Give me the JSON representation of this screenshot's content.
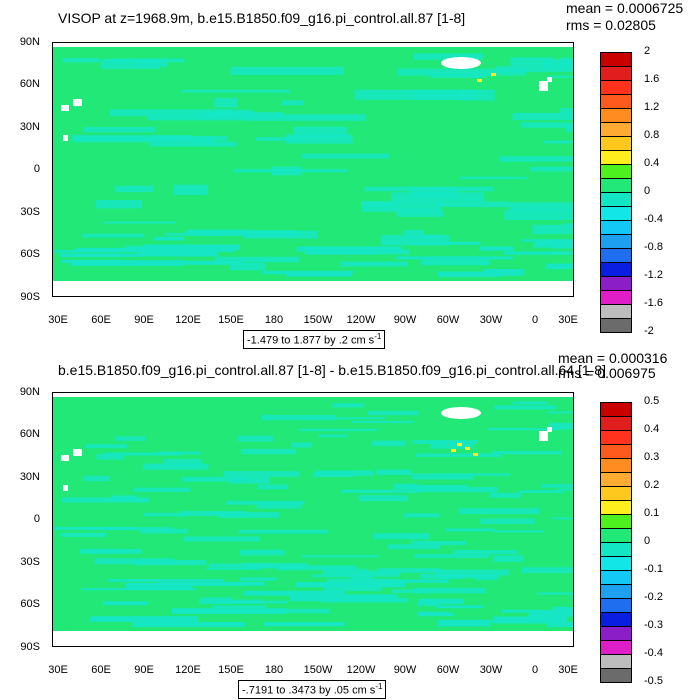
{
  "colors": {
    "ocean_base": "#22e878",
    "ocean_light": "#16e6c4",
    "land": "#ffffff",
    "scale": [
      "#6b6b6b",
      "#bdbdbd",
      "#e01ec8",
      "#8c1ec8",
      "#0a1ee0",
      "#1f6ef0",
      "#1ea0f0",
      "#13c8f5",
      "#12e6e6",
      "#12e6c2",
      "#22e878",
      "#4df21e",
      "#ffee1e",
      "#ffc81e",
      "#ffaa32",
      "#ff8c1e",
      "#ff5a1e",
      "#ff321e",
      "#e01e1e",
      "#c80000"
    ]
  },
  "top": {
    "title": "VISOP at z=1968.9m, b.e15.B1850.f09_g16.pi_control.all.87 [1-8]",
    "mean_label": "mean = 0.0006725",
    "rms_label": "rms = 0.02805",
    "range_label": "-1.479 to 1.877 by .2 cm s",
    "range_exp": "-1",
    "colorbar_labels": [
      "2",
      "1.6",
      "1.2",
      "0.8",
      "0.4",
      "0",
      "-0.4",
      "-0.8",
      "-1.2",
      "-1.6",
      "-2"
    ]
  },
  "bottom": {
    "title": "b.e15.B1850.f09_g16.pi_control.all.87 [1-8] - b.e15.B1850.f09_g16.pi_control.all.64 [1-8]",
    "mean_label": "mean = 0.000316",
    "rms_label": "rms = 0.006975",
    "range_label": "-.7191 to .3473 by .05 cm s",
    "range_exp": "-1",
    "colorbar_labels": [
      "0.5",
      "0.4",
      "0.3",
      "0.2",
      "0.1",
      "0",
      "-0.1",
      "-0.2",
      "-0.3",
      "-0.4",
      "-0.5"
    ]
  },
  "axes": {
    "y_ticks": [
      "90N",
      "60N",
      "30N",
      "0",
      "30S",
      "60S",
      "90S"
    ],
    "x_ticks": [
      "30E",
      "60E",
      "90E",
      "120E",
      "150E",
      "180",
      "150W",
      "120W",
      "90W",
      "60W",
      "30W",
      "0",
      "30E"
    ]
  },
  "chart_data": [
    {
      "type": "heatmap",
      "title": "VISOP at z=1968.9m, b.e15.B1850.f09_g16.pi_control.all.87 [1-8]",
      "x_ticks": [
        "30E",
        "60E",
        "90E",
        "120E",
        "150E",
        "180",
        "150W",
        "120W",
        "90W",
        "60W",
        "30W",
        "0",
        "30E"
      ],
      "y_ticks": [
        "90N",
        "60N",
        "30N",
        "0",
        "30S",
        "60S",
        "90S"
      ],
      "colorbar_levels": [
        -2,
        -1.6,
        -1.2,
        -0.8,
        -0.4,
        0,
        0.4,
        0.8,
        1.2,
        1.6,
        2
      ],
      "data_min": -1.479,
      "data_max": 1.877,
      "contour_interval": 0.2,
      "units": "cm s-1",
      "mean": 0.0006725,
      "rms": 0.02805
    },
    {
      "type": "heatmap",
      "title": "b.e15.B1850.f09_g16.pi_control.all.87 [1-8] - b.e15.B1850.f09_g16.pi_control.all.64 [1-8]",
      "x_ticks": [
        "30E",
        "60E",
        "90E",
        "120E",
        "150E",
        "180",
        "150W",
        "120W",
        "90W",
        "60W",
        "30W",
        "0",
        "30E"
      ],
      "y_ticks": [
        "90N",
        "60N",
        "30N",
        "0",
        "30S",
        "60S",
        "90S"
      ],
      "colorbar_levels": [
        -0.5,
        -0.4,
        -0.3,
        -0.2,
        -0.1,
        0,
        0.1,
        0.2,
        0.3,
        0.4,
        0.5
      ],
      "data_min": -0.7191,
      "data_max": 0.3473,
      "contour_interval": 0.05,
      "units": "cm s-1",
      "mean": 0.000316,
      "rms": 0.006975
    }
  ]
}
